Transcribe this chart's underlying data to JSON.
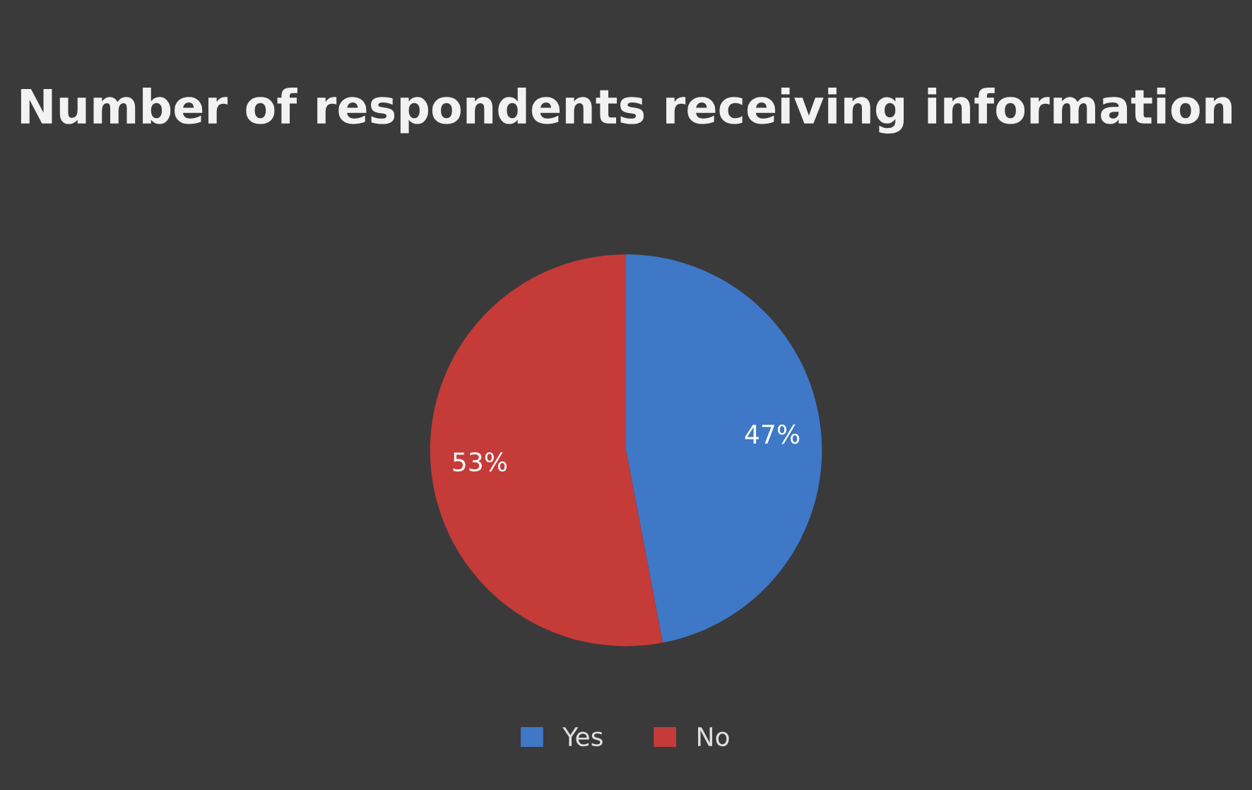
{
  "chart_data": {
    "type": "pie",
    "title": "Number of respondents receiving information",
    "categories": [
      "Yes",
      "No"
    ],
    "values": [
      47,
      53
    ],
    "colors": [
      "#3e78c6",
      "#c53b38"
    ],
    "value_labels": [
      "47%",
      "53%"
    ],
    "legend": "bottom"
  }
}
